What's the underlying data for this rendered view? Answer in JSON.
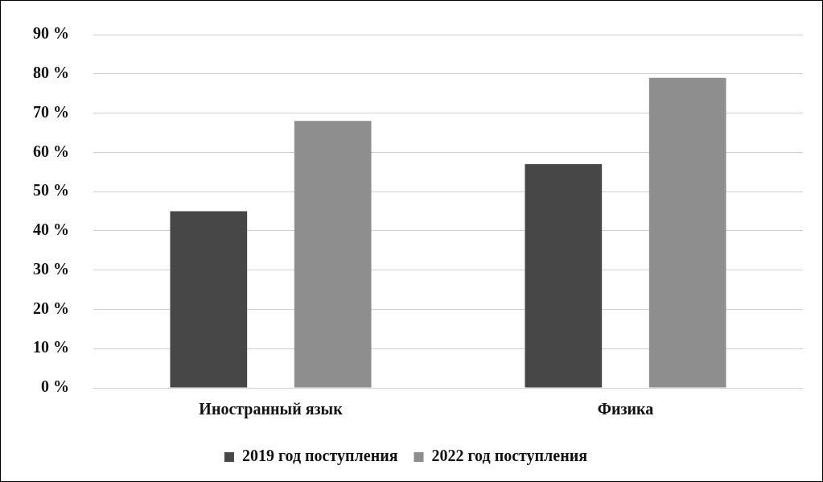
{
  "chart_data": {
    "type": "bar",
    "categories": [
      "Иностранный язык",
      "Физика"
    ],
    "series": [
      {
        "name": "2019 год поступления",
        "color": "#474747",
        "values": [
          45,
          57
        ]
      },
      {
        "name": "2022 год поступления",
        "color": "#8e8e8e",
        "values": [
          68,
          79
        ]
      }
    ],
    "ylim": [
      0,
      90
    ],
    "yticks": [
      {
        "value": 0,
        "label": "0 %"
      },
      {
        "value": 10,
        "label": "10 %"
      },
      {
        "value": 20,
        "label": "20 %"
      },
      {
        "value": 30,
        "label": "30 %"
      },
      {
        "value": 40,
        "label": "40 %"
      },
      {
        "value": 50,
        "label": "50 %"
      },
      {
        "value": 60,
        "label": "60 %"
      },
      {
        "value": 70,
        "label": "70 %"
      },
      {
        "value": 80,
        "label": "80 %"
      },
      {
        "value": 90,
        "label": "90 %"
      }
    ],
    "grid": "y",
    "legend": "bottom"
  }
}
